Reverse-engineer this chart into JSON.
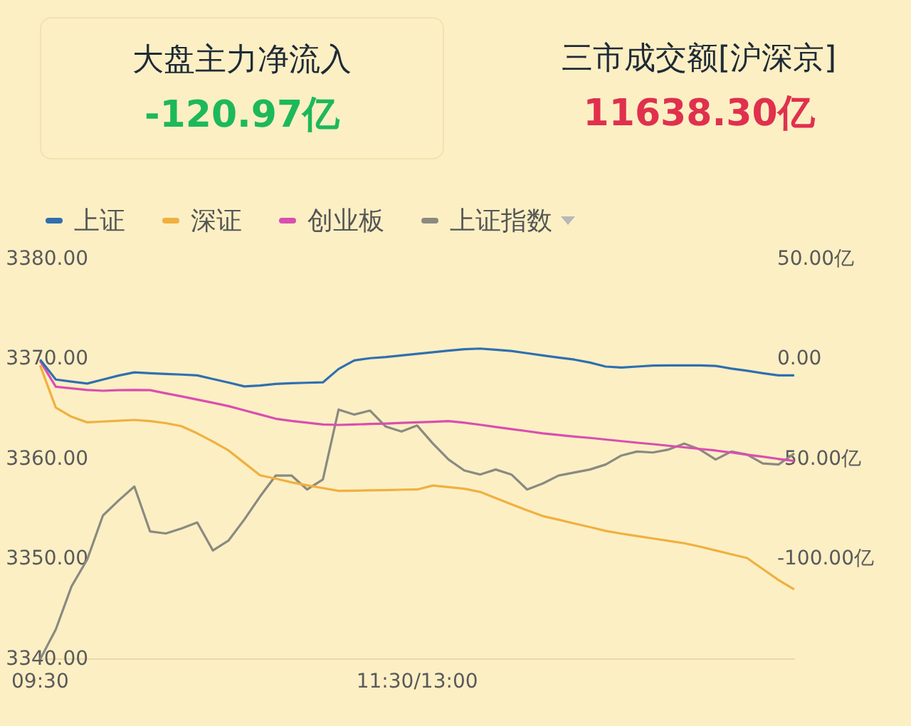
{
  "chart_data": {
    "type": "line",
    "annotations": [
      "大盘主力净流入",
      "-120.97亿",
      "三市成交额[沪深京]",
      "11638.30亿"
    ],
    "legend": "top left",
    "marker": "none",
    "line_style": "solid",
    "categories": [
      "09:30",
      null,
      null,
      null,
      null,
      null,
      null,
      null,
      null,
      null,
      null,
      null,
      null,
      null,
      null,
      null,
      null,
      null,
      null,
      null,
      null,
      null,
      null,
      null,
      "11:30/13:00",
      null,
      null,
      null,
      null,
      null,
      null,
      null,
      null,
      null,
      null,
      null,
      null,
      null,
      null,
      null,
      null,
      null,
      null,
      null,
      null,
      null,
      null,
      null,
      null
    ],
    "ylim": [
      3340,
      3380
    ],
    "yticks": [
      {
        "value": 3340,
        "label": "3340.00"
      },
      {
        "value": 3350,
        "label": "3350.00"
      },
      {
        "value": 3360,
        "label": "3360.00"
      },
      {
        "value": 3370,
        "label": "3370.00"
      },
      {
        "value": 3380,
        "label": "3380.00"
      }
    ],
    "y2lim": [
      -150,
      50
    ],
    "y2ticks": [
      {
        "value": -100,
        "label": "-100.00亿"
      },
      {
        "value": -50,
        "label": "-50.00亿"
      },
      {
        "value": 0,
        "label": "0.00"
      },
      {
        "value": 50,
        "label": "50.00亿"
      }
    ],
    "series": [
      {
        "name": "上证",
        "color": "#2f6fb0",
        "axis": "y2",
        "values": [
          0,
          -10,
          -11,
          -12,
          -10,
          -8,
          -6.4,
          -6.8,
          -7.2,
          -7.5,
          -7.9,
          -9.7,
          -11.5,
          -13.4,
          -13,
          -12.2,
          -11.8,
          -11.6,
          -11.4,
          -4.7,
          -0.4,
          0.7,
          1.3,
          2.1,
          2.9,
          3.7,
          4.5,
          5.2,
          5.5,
          4.9,
          4.3,
          3.2,
          2.1,
          1,
          0,
          -1.5,
          -3.5,
          -4,
          -3.5,
          -3,
          -2.9,
          -2.9,
          -2.9,
          -3.2,
          -4.5,
          -5.6,
          -6.8,
          -7.9,
          -7.9
        ]
      },
      {
        "name": "深证",
        "color": "#f0b040",
        "axis": "y2",
        "values": [
          -2.9,
          -24,
          -28.6,
          -31.4,
          -31,
          -30.6,
          -30.2,
          -30.8,
          -31.8,
          -33.3,
          -36.9,
          -41,
          -45.5,
          -51.7,
          -57.9,
          -59.6,
          -61.4,
          -62.9,
          -64.3,
          -65.7,
          -65.6,
          -65.4,
          -65.3,
          -65.1,
          -65,
          -63,
          -63.8,
          -64.6,
          -66.2,
          -69.3,
          -72.4,
          -75.4,
          -78.3,
          -80.1,
          -82,
          -83.8,
          -85.7,
          -87.1,
          -88.3,
          -89.5,
          -90.7,
          -91.9,
          -93.6,
          -95.5,
          -97.4,
          -99.3,
          -104.8,
          -110.3,
          -115
        ]
      },
      {
        "name": "创业板",
        "color": "#d94fb0",
        "axis": "y2",
        "values": [
          -0.7,
          -13.6,
          -14.4,
          -15.2,
          -15.6,
          -15.3,
          -15.2,
          -15.3,
          -16.9,
          -18.4,
          -20,
          -21.6,
          -23.3,
          -25.4,
          -27.5,
          -29.6,
          -30.7,
          -31.6,
          -32.5,
          -32.7,
          -32.5,
          -32.2,
          -32,
          -31.7,
          -31.4,
          -31.1,
          -30.8,
          -31.6,
          -32.6,
          -33.7,
          -34.8,
          -35.8,
          -36.9,
          -37.7,
          -38.5,
          -39.2,
          -40,
          -40.8,
          -41.6,
          -42.3,
          -43.1,
          -43.9,
          -44.7,
          -45.5,
          -46.5,
          -47.6,
          -48.6,
          -49.7,
          -50.7
        ]
      },
      {
        "name": "上证指数",
        "color": "#8a8a80",
        "axis": "y",
        "values": [
          3340,
          3343,
          3347.3,
          3350,
          3354.4,
          3355.9,
          3357.3,
          3352.8,
          3352.6,
          3353.1,
          3353.7,
          3350.9,
          3351.9,
          3354,
          3356.3,
          3358.4,
          3358.4,
          3357,
          3358,
          3365,
          3364.5,
          3364.9,
          3363.3,
          3362.8,
          3363.4,
          3361.6,
          3360,
          3358.9,
          3358.5,
          3359,
          3358.5,
          3357,
          3357.6,
          3358.4,
          3358.7,
          3359,
          3359.5,
          3360.4,
          3360.8,
          3360.7,
          3361,
          3361.6,
          3361,
          3360,
          3360.8,
          3360.5,
          3359.6,
          3359.5,
          3360.6
        ]
      }
    ]
  }
}
